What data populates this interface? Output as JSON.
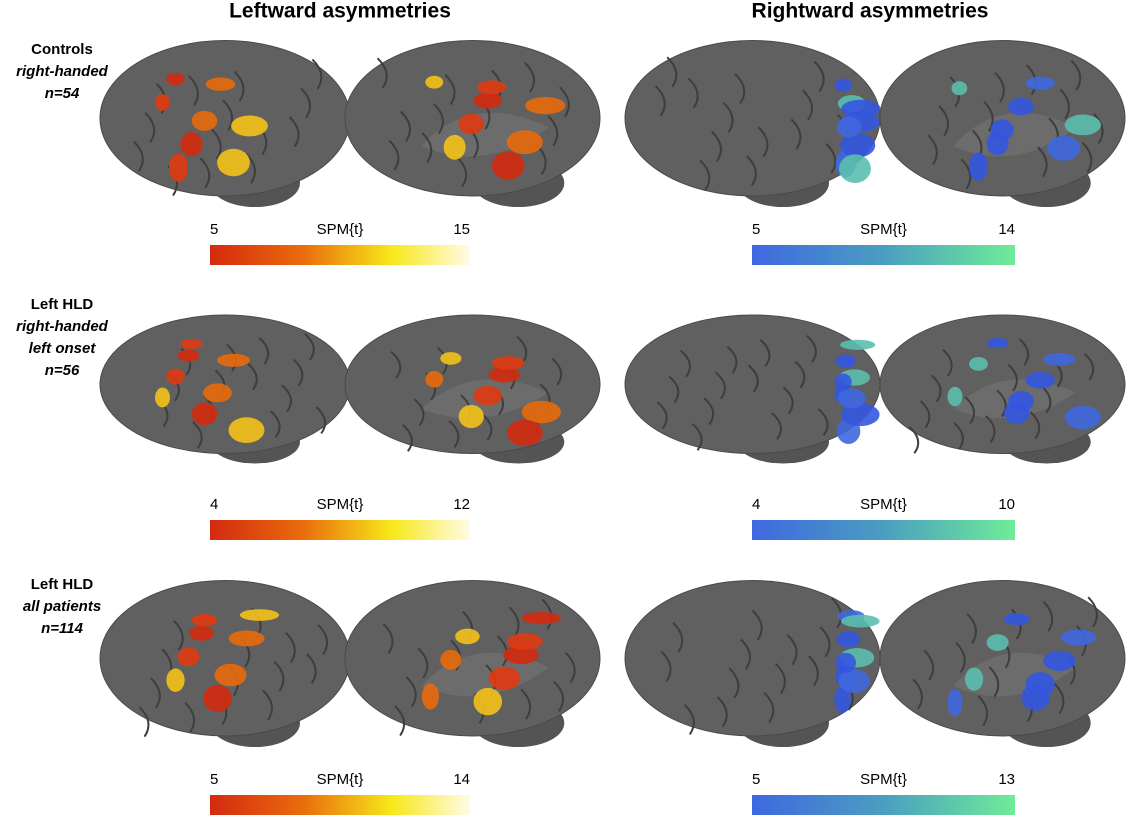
{
  "columns": [
    "Leftward asymmetries",
    "Rightward asymmetries"
  ],
  "rows": [
    {
      "group": "Controls",
      "subgroup": [
        "right-handed"
      ],
      "n": "n=54",
      "colorbars": [
        {
          "label": "SPM{t}",
          "min": 5,
          "max": 15
        },
        {
          "label": "SPM{t}",
          "min": 5,
          "max": 14
        }
      ]
    },
    {
      "group": "Left HLD",
      "subgroup": [
        "right-handed",
        "left onset"
      ],
      "n": "n=56",
      "colorbars": [
        {
          "label": "SPM{t}",
          "min": 4,
          "max": 12
        },
        {
          "label": "SPM{t}",
          "min": 4,
          "max": 10
        }
      ]
    },
    {
      "group": "Left HLD",
      "subgroup": [
        "all patients"
      ],
      "n": "n=114",
      "colorbars": [
        {
          "label": "SPM{t}",
          "min": 5,
          "max": 14
        },
        {
          "label": "SPM{t}",
          "min": 5,
          "max": 13
        }
      ]
    }
  ]
}
